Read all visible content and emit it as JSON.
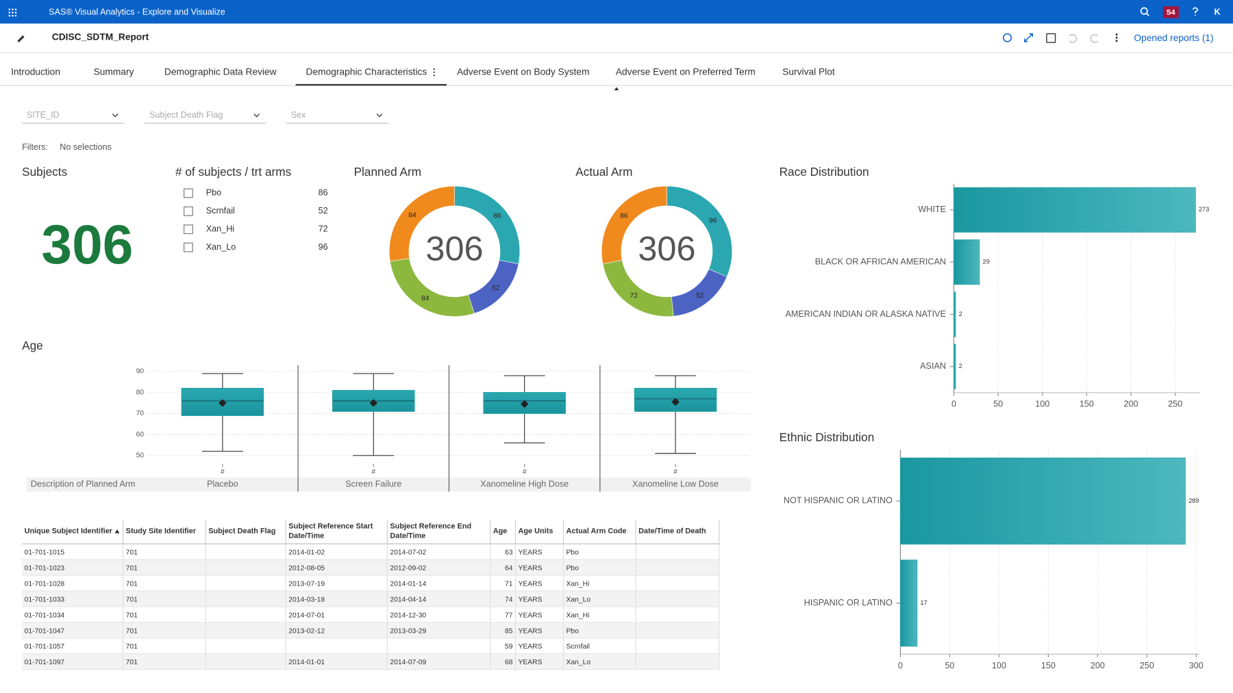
{
  "header": {
    "app_title": "SAS® Visual Analytics - Explore and Visualize",
    "notification_count": 54,
    "user_initial": "K"
  },
  "toolbar": {
    "report_name": "CDISC_SDTM_Report",
    "opened_reports": "Opened reports (1)"
  },
  "tabs": {
    "items": [
      "Introduction",
      "Summary",
      "Demographic Data Review",
      "Demographic Characteristics",
      "Adverse Event on Body System",
      "Adverse Event on Preferred Term",
      "Survival Plot"
    ],
    "active": 3
  },
  "filters": {
    "dropdowns": [
      "SITE_ID",
      "Subject Death Flag",
      "Sex"
    ],
    "label": "Filters:",
    "selection": "No selections"
  },
  "subjects": {
    "title": "Subjects",
    "count": 306
  },
  "trt_arms": {
    "title": "# of subjects / trt arms",
    "items": [
      {
        "label": "Pbo",
        "count": 86
      },
      {
        "label": "Scrnfail",
        "count": 52
      },
      {
        "label": "Xan_Hi",
        "count": 72
      },
      {
        "label": "Xan_Lo",
        "count": 96
      }
    ]
  },
  "planned_arm": {
    "type": "pie",
    "title": "Planned Arm",
    "total": 306,
    "values": [
      86,
      52,
      84,
      84
    ],
    "colors": [
      "#2aa7b1",
      "#4d63c4",
      "#8cb83e",
      "#f08a1d"
    ]
  },
  "actual_arm": {
    "type": "pie",
    "title": "Actual Arm",
    "total": 306,
    "values": [
      96,
      52,
      72,
      86
    ],
    "colors": [
      "#2aa7b1",
      "#4d63c4",
      "#8cb83e",
      "#f08a1d"
    ]
  },
  "race": {
    "type": "bar",
    "title": "Race Distribution",
    "categories": [
      "WHITE",
      "BLACK OR AFRICAN AMERICAN",
      "AMERICAN INDIAN OR ALASKA NATIVE",
      "ASIAN"
    ],
    "values": [
      273,
      29,
      2,
      2
    ],
    "xlim": [
      0,
      278
    ],
    "xticks": [
      0,
      50,
      100,
      150,
      200,
      250
    ],
    "grid": true,
    "color": "#23a0a8"
  },
  "ethnic": {
    "type": "bar",
    "title": "Ethnic Distribution",
    "categories": [
      "NOT HISPANIC OR LATINO",
      "HISPANIC OR LATINO"
    ],
    "values": [
      289,
      17
    ],
    "xlim": [
      0,
      303
    ],
    "xticks": [
      0,
      50,
      100,
      150,
      200,
      250,
      300
    ],
    "grid": true,
    "color": "#23a0a8"
  },
  "age": {
    "type": "box",
    "title": "Age",
    "group_label": "Description of Planned Arm",
    "x_label": "#",
    "categories": [
      "Placebo",
      "Screen Failure",
      "Xanomeline High Dose",
      "Xanomeline Low Dose"
    ],
    "boxes": [
      {
        "min": 52,
        "q1": 69,
        "median": 76,
        "q3": 82,
        "max": 89,
        "mean": 75
      },
      {
        "min": 50,
        "q1": 71,
        "median": 76,
        "q3": 81,
        "max": 89,
        "mean": 75
      },
      {
        "min": 56,
        "q1": 70,
        "median": 76,
        "q3": 80,
        "max": 88,
        "mean": 74.5
      },
      {
        "min": 51,
        "q1": 71,
        "median": 77,
        "q3": 82,
        "max": 88,
        "mean": 75.5
      }
    ],
    "ylim": [
      46,
      93
    ],
    "yticks": [
      50,
      60,
      70,
      80,
      90
    ],
    "grid": true,
    "color": "#23a0a8"
  },
  "table": {
    "columns": [
      "Unique Subject Identifier",
      "Study Site Identifier",
      "Subject Death Flag",
      "Subject Reference Start Date/Time",
      "Subject Reference End Date/Time",
      "Age",
      "Age Units",
      "Actual Arm Code",
      "Date/Time of Death"
    ],
    "rows": [
      [
        "01-701-1015",
        701,
        null,
        "2014-01-02",
        "2014-07-02",
        63,
        "YEARS",
        "Pbo",
        null
      ],
      [
        "01-701-1023",
        701,
        null,
        "2012-08-05",
        "2012-09-02",
        64,
        "YEARS",
        "Pbo",
        null
      ],
      [
        "01-701-1028",
        701,
        null,
        "2013-07-19",
        "2014-01-14",
        71,
        "YEARS",
        "Xan_Hi",
        null
      ],
      [
        "01-701-1033",
        701,
        null,
        "2014-03-18",
        "2014-04-14",
        74,
        "YEARS",
        "Xan_Lo",
        null
      ],
      [
        "01-701-1034",
        701,
        null,
        "2014-07-01",
        "2014-12-30",
        77,
        "YEARS",
        "Xan_Hi",
        null
      ],
      [
        "01-701-1047",
        701,
        null,
        "2013-02-12",
        "2013-03-29",
        85,
        "YEARS",
        "Pbo",
        null
      ],
      [
        "01-701-1057",
        701,
        null,
        null,
        null,
        59,
        "YEARS",
        "Scrnfail",
        null
      ],
      [
        "01-701-1097",
        701,
        null,
        "2014-01-01",
        "2014-07-09",
        68,
        "YEARS",
        "Xan_Lo",
        null
      ]
    ]
  }
}
